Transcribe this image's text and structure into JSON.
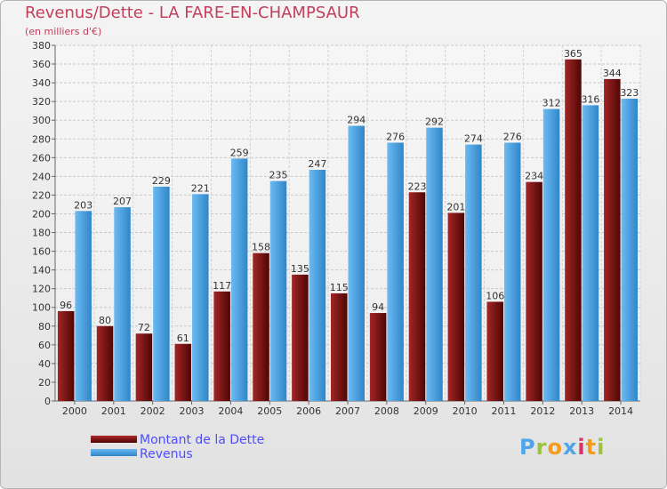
{
  "title": "Revenus/Dette - LA FARE-EN-CHAMPSAUR",
  "subtitle": "(en milliers d'€)",
  "colors": {
    "dette": "#7a1212",
    "revenus": "#4ea6e8",
    "title": "#c33e5b",
    "legend_text": "#4d4dff"
  },
  "chart_data": {
    "type": "bar",
    "categories": [
      "2000",
      "2001",
      "2002",
      "2003",
      "2004",
      "2005",
      "2006",
      "2007",
      "2008",
      "2009",
      "2010",
      "2011",
      "2012",
      "2013",
      "2014"
    ],
    "series": [
      {
        "name": "Montant de la Dette",
        "values": [
          96,
          80,
          72,
          61,
          117,
          158,
          135,
          115,
          94,
          223,
          201,
          106,
          234,
          365,
          344
        ]
      },
      {
        "name": "Revenus",
        "values": [
          203,
          207,
          229,
          221,
          259,
          235,
          247,
          294,
          276,
          292,
          274,
          276,
          312,
          316,
          323
        ]
      }
    ],
    "ylim": [
      0,
      380
    ],
    "ytick_step": 20,
    "grid": true,
    "legend": "bottom-left"
  },
  "legend": {
    "dette_label": "Montant de la Dette",
    "revenus_label": "Revenus"
  },
  "logo": {
    "text": "Proxiti",
    "letter_colors": [
      "#4ea6e8",
      "#9ac33c",
      "#f29b1f",
      "#4ea6e8",
      "#d6336c",
      "#f29b1f",
      "#9ac33c"
    ]
  }
}
